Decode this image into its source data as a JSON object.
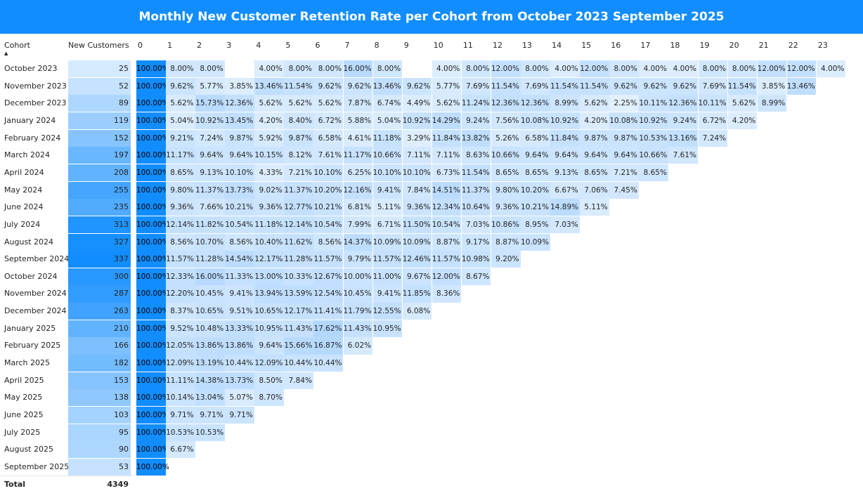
{
  "title": "Monthly New Customer Retention Rate per Cohort from October 2023  September 2025",
  "colors": {
    "accent": "#118dff",
    "max_heat": "#118dff",
    "min_heat": "#ffffff"
  },
  "columns": {
    "cohort": "Cohort",
    "new_customers": "New Customers",
    "sort_icon": "sort-ascending-icon"
  },
  "total": {
    "label": "Total",
    "value": "4349"
  },
  "chart_data": {
    "type": "heatmap",
    "title": "Monthly New Customer Retention Rate per Cohort from October 2023  September 2025",
    "xlabel": "",
    "ylabel": "Cohort",
    "x": [
      "0",
      "1",
      "2",
      "3",
      "4",
      "5",
      "6",
      "7",
      "8",
      "9",
      "10",
      "11",
      "12",
      "13",
      "14",
      "15",
      "16",
      "17",
      "18",
      "19",
      "20",
      "21",
      "22",
      "23"
    ],
    "unit": "%",
    "rows": [
      {
        "cohort": "October 2023",
        "new_customers": 25,
        "values": [
          100,
          8,
          8,
          null,
          4,
          8,
          8,
          16,
          8,
          null,
          4,
          8,
          12,
          8,
          4,
          12,
          8,
          4,
          4,
          8,
          8,
          12,
          12,
          4
        ]
      },
      {
        "cohort": "November 2023",
        "new_customers": 52,
        "values": [
          100,
          9.62,
          5.77,
          3.85,
          13.46,
          11.54,
          9.62,
          9.62,
          13.46,
          9.62,
          5.77,
          7.69,
          11.54,
          7.69,
          11.54,
          11.54,
          9.62,
          9.62,
          9.62,
          7.69,
          11.54,
          3.85,
          13.46
        ]
      },
      {
        "cohort": "December 2023",
        "new_customers": 89,
        "values": [
          100,
          5.62,
          15.73,
          12.36,
          5.62,
          5.62,
          5.62,
          7.87,
          6.74,
          4.49,
          5.62,
          11.24,
          12.36,
          12.36,
          8.99,
          5.62,
          2.25,
          10.11,
          12.36,
          10.11,
          5.62,
          8.99
        ]
      },
      {
        "cohort": "January 2024",
        "new_customers": 119,
        "values": [
          100,
          5.04,
          10.92,
          13.45,
          4.2,
          8.4,
          6.72,
          5.88,
          5.04,
          10.92,
          14.29,
          9.24,
          7.56,
          10.08,
          10.92,
          4.2,
          10.08,
          10.92,
          9.24,
          6.72,
          4.2
        ]
      },
      {
        "cohort": "February 2024",
        "new_customers": 152,
        "values": [
          100,
          9.21,
          7.24,
          9.87,
          5.92,
          9.87,
          6.58,
          4.61,
          11.18,
          3.29,
          11.84,
          13.82,
          5.26,
          6.58,
          11.84,
          9.87,
          9.87,
          10.53,
          13.16,
          7.24
        ]
      },
      {
        "cohort": "March 2024",
        "new_customers": 197,
        "values": [
          100,
          11.17,
          9.64,
          9.64,
          10.15,
          8.12,
          7.61,
          11.17,
          10.66,
          7.11,
          7.11,
          8.63,
          10.66,
          9.64,
          9.64,
          9.64,
          9.64,
          10.66,
          7.61
        ]
      },
      {
        "cohort": "April 2024",
        "new_customers": 208,
        "values": [
          100,
          8.65,
          9.13,
          10.1,
          4.33,
          7.21,
          10.1,
          6.25,
          10.1,
          10.1,
          6.73,
          11.54,
          8.65,
          8.65,
          9.13,
          8.65,
          7.21,
          8.65
        ]
      },
      {
        "cohort": "May 2024",
        "new_customers": 255,
        "values": [
          100,
          9.8,
          11.37,
          13.73,
          9.02,
          11.37,
          10.2,
          12.16,
          9.41,
          7.84,
          14.51,
          11.37,
          9.8,
          10.2,
          6.67,
          7.06,
          7.45
        ]
      },
      {
        "cohort": "June 2024",
        "new_customers": 235,
        "values": [
          100,
          9.36,
          7.66,
          10.21,
          9.36,
          12.77,
          10.21,
          6.81,
          5.11,
          9.36,
          12.34,
          10.64,
          9.36,
          10.21,
          14.89,
          5.11
        ]
      },
      {
        "cohort": "July 2024",
        "new_customers": 313,
        "values": [
          100,
          12.14,
          11.82,
          10.54,
          11.18,
          12.14,
          10.54,
          7.99,
          6.71,
          11.5,
          10.54,
          7.03,
          10.86,
          8.95,
          7.03
        ]
      },
      {
        "cohort": "August 2024",
        "new_customers": 327,
        "values": [
          100,
          8.56,
          10.7,
          8.56,
          10.4,
          11.62,
          8.56,
          14.37,
          10.09,
          10.09,
          8.87,
          9.17,
          8.87,
          10.09
        ]
      },
      {
        "cohort": "September 2024",
        "new_customers": 337,
        "values": [
          100,
          11.57,
          11.28,
          14.54,
          12.17,
          11.28,
          11.57,
          9.79,
          11.57,
          12.46,
          11.57,
          10.98,
          9.2
        ]
      },
      {
        "cohort": "October 2024",
        "new_customers": 300,
        "values": [
          100,
          12.33,
          16,
          11.33,
          13,
          10.33,
          12.67,
          10,
          11,
          9.67,
          12,
          8.67
        ]
      },
      {
        "cohort": "November 2024",
        "new_customers": 287,
        "values": [
          100,
          12.2,
          10.45,
          9.41,
          13.94,
          13.59,
          12.54,
          10.45,
          9.41,
          11.85,
          8.36
        ]
      },
      {
        "cohort": "December 2024",
        "new_customers": 263,
        "values": [
          100,
          8.37,
          10.65,
          9.51,
          10.65,
          12.17,
          11.41,
          11.79,
          12.55,
          6.08
        ]
      },
      {
        "cohort": "January 2025",
        "new_customers": 210,
        "values": [
          100,
          9.52,
          10.48,
          13.33,
          10.95,
          11.43,
          17.62,
          11.43,
          10.95
        ]
      },
      {
        "cohort": "February 2025",
        "new_customers": 166,
        "values": [
          100,
          12.05,
          13.86,
          13.86,
          9.64,
          15.66,
          16.87,
          6.02
        ]
      },
      {
        "cohort": "March 2025",
        "new_customers": 182,
        "values": [
          100,
          12.09,
          13.19,
          10.44,
          12.09,
          10.44,
          10.44
        ]
      },
      {
        "cohort": "April 2025",
        "new_customers": 153,
        "values": [
          100,
          11.11,
          14.38,
          13.73,
          8.5,
          7.84
        ]
      },
      {
        "cohort": "May 2025",
        "new_customers": 138,
        "values": [
          100,
          10.14,
          13.04,
          5.07,
          8.7
        ]
      },
      {
        "cohort": "June 2025",
        "new_customers": 103,
        "values": [
          100,
          9.71,
          9.71,
          9.71
        ]
      },
      {
        "cohort": "July 2025",
        "new_customers": 95,
        "values": [
          100,
          10.53,
          10.53
        ]
      },
      {
        "cohort": "August 2025",
        "new_customers": 90,
        "values": [
          100,
          6.67
        ]
      },
      {
        "cohort": "September 2025",
        "new_customers": 53,
        "values": [
          100
        ]
      }
    ]
  }
}
